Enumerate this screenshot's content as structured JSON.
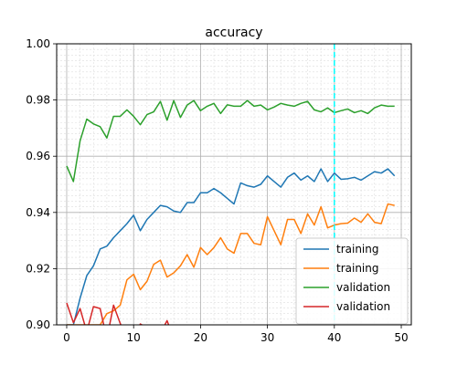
{
  "chart_data": {
    "type": "line",
    "title": "accuracy",
    "xlabel": "",
    "ylabel": "",
    "xlim": [
      -1.5,
      51.5
    ],
    "ylim": [
      0.9,
      1.0
    ],
    "x_ticks": [
      0,
      10,
      20,
      30,
      40,
      50
    ],
    "y_ticks": [
      0.9,
      0.92,
      0.94,
      0.96,
      0.98,
      1.0
    ],
    "y_tick_labels": [
      "0.90",
      "0.92",
      "0.94",
      "0.96",
      "0.98",
      "1.00"
    ],
    "grid": "major and minor",
    "legend_position": "lower right",
    "x": [
      0,
      1,
      2,
      3,
      4,
      5,
      6,
      7,
      8,
      9,
      10,
      11,
      12,
      13,
      14,
      15,
      16,
      17,
      18,
      19,
      20,
      21,
      22,
      23,
      24,
      25,
      26,
      27,
      28,
      29,
      30,
      31,
      32,
      33,
      34,
      35,
      36,
      37,
      38,
      39,
      40,
      41,
      42,
      43,
      44,
      45,
      46,
      47,
      48,
      49
    ],
    "series": [
      {
        "name": "training",
        "color": "#1f77b4",
        "values": [
          0.9,
          0.9,
          0.9095,
          0.9175,
          0.921,
          0.927,
          0.928,
          0.931,
          0.9335,
          0.936,
          0.939,
          0.9335,
          0.9375,
          0.94,
          0.9425,
          0.942,
          0.9405,
          0.94,
          0.9435,
          0.9435,
          0.947,
          0.947,
          0.9485,
          0.947,
          0.945,
          0.943,
          0.9505,
          0.9495,
          0.949,
          0.95,
          0.953,
          0.951,
          0.949,
          0.9525,
          0.954,
          0.9515,
          0.953,
          0.951,
          0.9555,
          0.951,
          0.954,
          0.9518,
          0.952,
          0.9525,
          0.9515,
          0.953,
          0.9545,
          0.954,
          0.9555,
          0.953
        ]
      },
      {
        "name": "training",
        "color": "#ff7f0e",
        "values": [
          0.9,
          0.9,
          0.9,
          0.9,
          0.9,
          0.9,
          0.904,
          0.905,
          0.907,
          0.916,
          0.918,
          0.9125,
          0.9155,
          0.9215,
          0.923,
          0.917,
          0.9185,
          0.921,
          0.925,
          0.9205,
          0.9275,
          0.925,
          0.9275,
          0.931,
          0.927,
          0.9255,
          0.9325,
          0.9325,
          0.929,
          0.9285,
          0.9385,
          0.9335,
          0.9285,
          0.9375,
          0.9375,
          0.9325,
          0.9395,
          0.9355,
          0.942,
          0.9345,
          0.9355,
          0.936,
          0.9362,
          0.938,
          0.9365,
          0.9395,
          0.9365,
          0.936,
          0.943,
          0.9425
        ]
      },
      {
        "name": "validation",
        "color": "#2ca02c",
        "values": [
          0.9565,
          0.951,
          0.9655,
          0.9732,
          0.9715,
          0.9705,
          0.9665,
          0.9742,
          0.9742,
          0.9765,
          0.9742,
          0.9712,
          0.9748,
          0.9758,
          0.9795,
          0.9728,
          0.9798,
          0.9738,
          0.9782,
          0.9798,
          0.9762,
          0.9778,
          0.9788,
          0.9752,
          0.9783,
          0.9778,
          0.9778,
          0.9798,
          0.9778,
          0.9782,
          0.9765,
          0.9775,
          0.9788,
          0.9782,
          0.9778,
          0.9788,
          0.9795,
          0.9765,
          0.9758,
          0.9772,
          0.9755,
          0.9762,
          0.9768,
          0.9755,
          0.9762,
          0.9752,
          0.9772,
          0.9782,
          0.9778,
          0.9778
        ]
      },
      {
        "name": "validation",
        "color": "#d62728",
        "values": [
          0.9078,
          0.9008,
          0.9058,
          0.8975,
          0.9065,
          0.9058,
          0.895,
          0.907,
          0.9005,
          0.895,
          0.895,
          0.9003,
          0.899,
          0.895,
          0.897,
          0.9015,
          0.895,
          0.895,
          0.895,
          0.895,
          0.895,
          0.895,
          0.895,
          0.895,
          0.895,
          0.895,
          0.895,
          0.895,
          0.895,
          0.895,
          0.895,
          0.895,
          0.895,
          0.895,
          0.895,
          0.895,
          0.895,
          0.895,
          0.895,
          0.895,
          0.895,
          0.895,
          0.895,
          0.895,
          0.895,
          0.895,
          0.895,
          0.895,
          0.895,
          0.895
        ]
      }
    ],
    "annotations": [
      {
        "type": "vertical_line",
        "x": 40,
        "color": "#00ffff",
        "style": "dashed"
      }
    ]
  }
}
